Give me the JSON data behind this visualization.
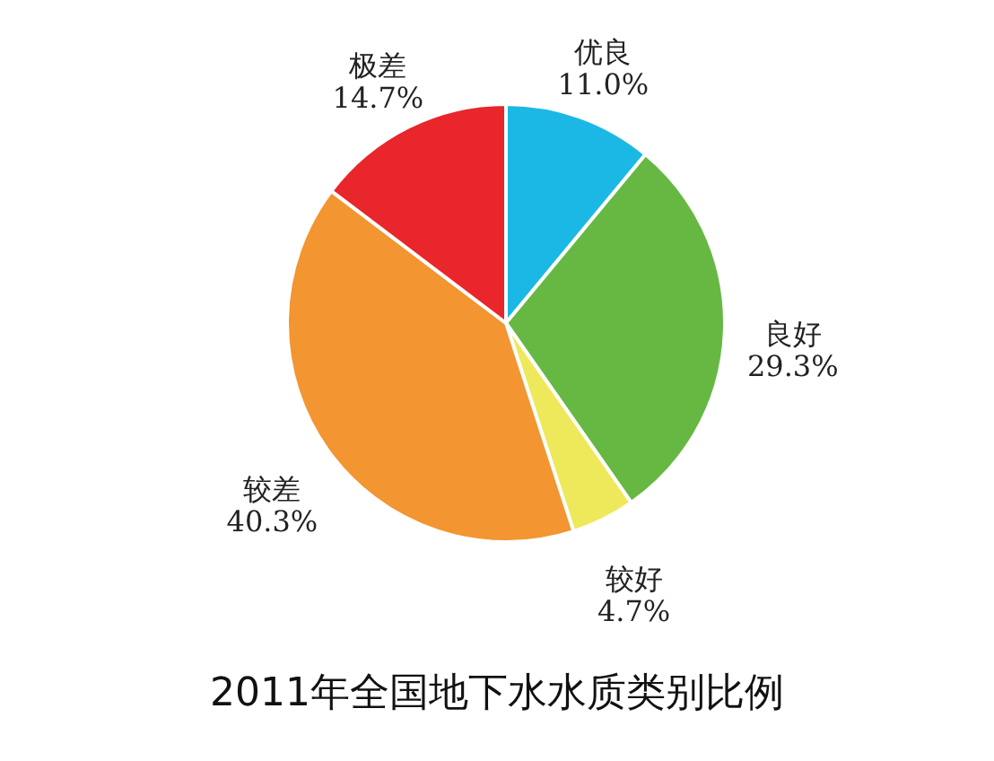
{
  "chart_data": {
    "type": "pie",
    "title": "2011年全国地下水水质类别比例",
    "categories": [
      "优良",
      "良好",
      "较好",
      "较差",
      "极差"
    ],
    "values": [
      11.0,
      29.3,
      4.7,
      40.3,
      14.7
    ],
    "colors": [
      "#1bb8e6",
      "#66b843",
      "#ede95a",
      "#f39530",
      "#e8262b"
    ],
    "value_labels": [
      "11.0%",
      "29.3%",
      "4.7%",
      "40.3%",
      "14.7%"
    ]
  }
}
